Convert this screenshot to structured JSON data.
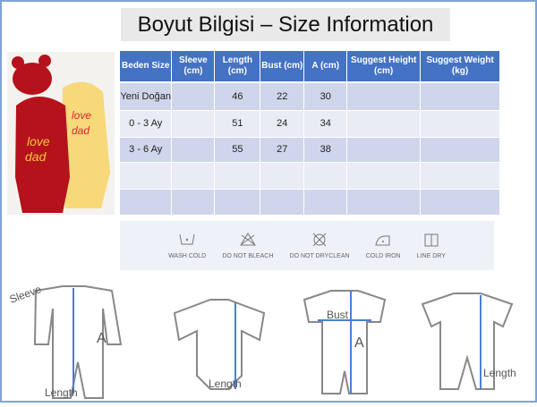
{
  "title": "Boyut Bilgisi – Size Information",
  "table": {
    "headers": [
      "Beden Size",
      "Sleeve (cm)",
      "Length (cm)",
      "Bust (cm)",
      "A (cm)",
      "Suggest Height (cm)",
      "Suggest Weight (kg)"
    ],
    "rows": [
      [
        "Yeni Doğan",
        "",
        "46",
        "22",
        "30",
        "",
        ""
      ],
      [
        "0 - 3 Ay",
        "",
        "51",
        "24",
        "34",
        "",
        ""
      ],
      [
        "3 - 6 Ay",
        "",
        "55",
        "27",
        "38",
        "",
        ""
      ],
      [
        "",
        "",
        "",
        "",
        "",
        "",
        ""
      ],
      [
        "",
        "",
        "",
        "",
        "",
        "",
        ""
      ]
    ]
  },
  "care": [
    {
      "label": "WASH COLD",
      "icon": "wash-cold-icon"
    },
    {
      "label": "DO NOT BLEACH",
      "icon": "no-bleach-icon"
    },
    {
      "label": "DO NOT DRYCLEAN",
      "icon": "no-dryclean-icon"
    },
    {
      "label": "COLD IRON",
      "icon": "cold-iron-icon"
    },
    {
      "label": "LINE DRY",
      "icon": "line-dry-icon"
    }
  ],
  "diagram_labels": {
    "sleeve": "Sleeve",
    "a1": "A",
    "length1": "Length",
    "length2": "Length",
    "bust": "Bust",
    "a2": "A",
    "length3": "Length"
  },
  "photo_text": "love dad"
}
